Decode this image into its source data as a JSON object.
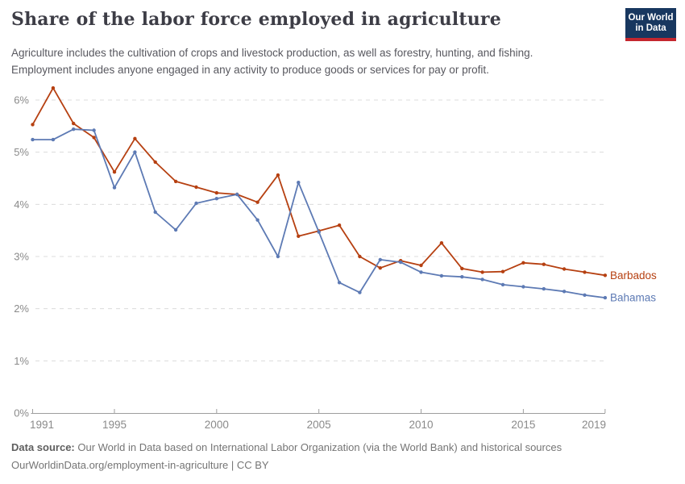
{
  "header": {
    "title": "Share of the labor force employed in agriculture",
    "subtitle_line1": "Agriculture includes the cultivation of crops and livestock production, as well as forestry, hunting, and fishing.",
    "subtitle_line2": "Employment includes anyone engaged in any activity to produce goods or services for pay or profit.",
    "logo": {
      "line1": "Our World",
      "line2": "in Data"
    }
  },
  "chart_data": {
    "type": "line",
    "title": "Share of the labor force employed in agriculture",
    "x": [
      1991,
      1992,
      1993,
      1994,
      1995,
      1996,
      1997,
      1998,
      1999,
      2000,
      2001,
      2002,
      2003,
      2004,
      2005,
      2006,
      2007,
      2008,
      2009,
      2010,
      2011,
      2012,
      2013,
      2014,
      2015,
      2016,
      2017,
      2018,
      2019
    ],
    "series": [
      {
        "name": "Barbados",
        "color": "#b64011",
        "values": [
          5.53,
          6.23,
          5.55,
          5.28,
          4.62,
          5.26,
          4.81,
          4.44,
          4.33,
          4.22,
          4.19,
          4.04,
          4.56,
          3.39,
          3.49,
          3.6,
          3.0,
          2.78,
          2.92,
          2.83,
          3.26,
          2.77,
          2.7,
          2.71,
          2.88,
          2.85,
          2.76,
          2.7,
          2.64
        ]
      },
      {
        "name": "Bahamas",
        "color": "#5d7ab4",
        "values": [
          5.24,
          5.24,
          5.44,
          5.42,
          4.32,
          5.0,
          3.85,
          3.51,
          4.02,
          4.11,
          4.19,
          3.7,
          3.0,
          4.42,
          3.47,
          2.5,
          2.31,
          2.94,
          2.89,
          2.7,
          2.63,
          2.61,
          2.56,
          2.46,
          2.42,
          2.38,
          2.33,
          2.26,
          2.21
        ]
      }
    ],
    "xticks": [
      1991,
      1995,
      2000,
      2005,
      2010,
      2015,
      2019
    ],
    "yticks": [
      0,
      1,
      2,
      3,
      4,
      5,
      6
    ],
    "ytick_suffix": "%",
    "ylim": [
      0,
      6.35
    ],
    "xlim": [
      1991,
      2019
    ],
    "grid": "horizontal-dashed",
    "legend": "end-of-line-labels",
    "xlabel": "",
    "ylabel": ""
  },
  "footer": {
    "source_label": "Data source:",
    "source_text": " Our World in Data based on International Labor Organization (via the World Bank) and historical sources",
    "license_line": "OurWorldinData.org/employment-in-agriculture | CC BY"
  },
  "colors": {
    "grid": "#dcdcdc",
    "axis": "#9e9e9e",
    "tick_label": "#8a8a8a",
    "barbados": "#b64011",
    "bahamas": "#5d7ab4",
    "logo_bg": "#18375f",
    "logo_bar": "#c4262e"
  }
}
